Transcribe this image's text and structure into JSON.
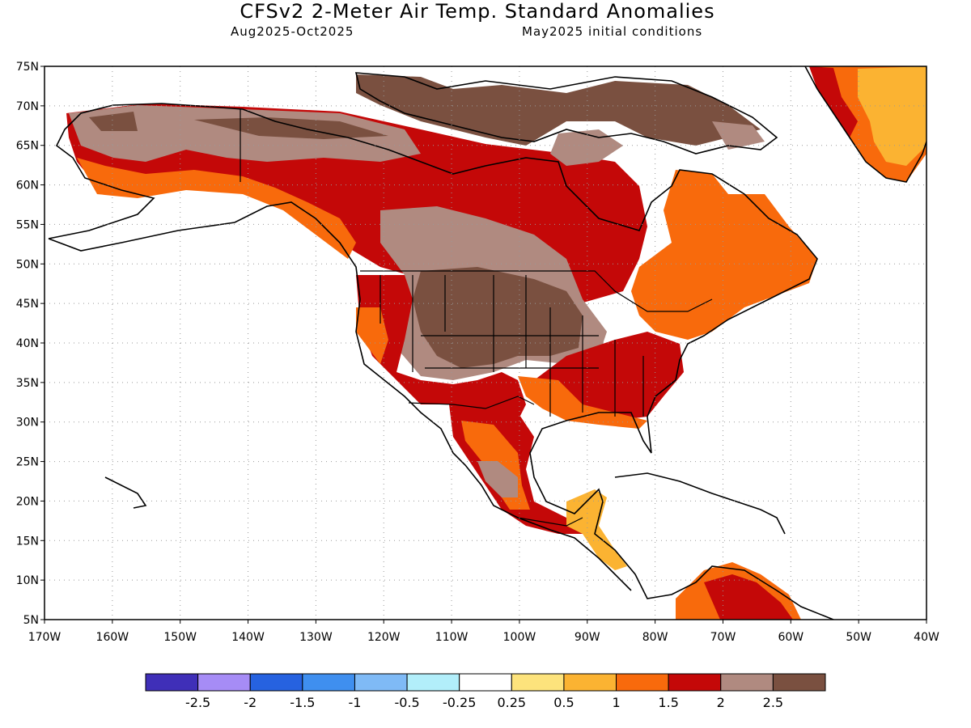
{
  "header": {
    "title": "CFSv2 2-Meter Air Temp. Standard Anomalies",
    "period": "Aug2025-Oct2025",
    "init": "May2025 initial conditions"
  },
  "axes": {
    "lat_labels": [
      "75N",
      "70N",
      "65N",
      "60N",
      "55N",
      "50N",
      "45N",
      "40N",
      "35N",
      "30N",
      "25N",
      "20N",
      "15N",
      "10N",
      "5N"
    ],
    "lon_labels": [
      "170W",
      "160W",
      "150W",
      "140W",
      "130W",
      "120W",
      "110W",
      "100W",
      "90W",
      "80W",
      "70W",
      "60W",
      "50W",
      "40W"
    ]
  },
  "colorbar": {
    "colors": [
      "#3f2fb8",
      "#a68cf6",
      "#2662e0",
      "#3f8fef",
      "#7fbaf6",
      "#b2eefa",
      "#ffffff",
      "#fde37c",
      "#fbb332",
      "#f86a0c",
      "#c40808",
      "#b08a80",
      "#7a5040"
    ],
    "labels": [
      "-2.5",
      "-2",
      "-1.5",
      "-1",
      "-0.5",
      "-0.25",
      "0.25",
      "0.5",
      "1",
      "1.5",
      "2",
      "2.5"
    ]
  }
}
